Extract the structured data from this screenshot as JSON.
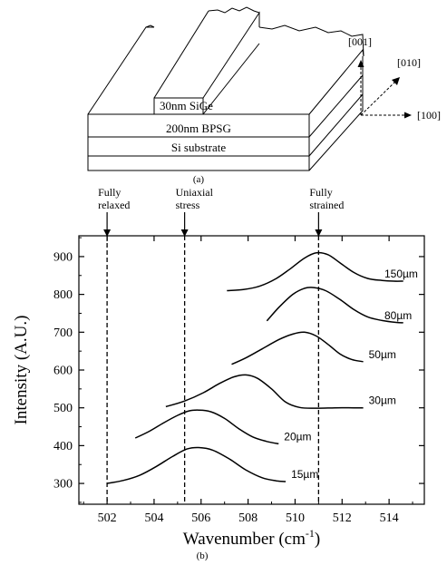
{
  "panel_a": {
    "layers": [
      "30nm SiGe",
      "200nm BPSG",
      "Si substrate"
    ],
    "axes": [
      "[001]",
      "[010]",
      "[100]"
    ],
    "caption": "(a)"
  },
  "panel_b": {
    "caption": "(b)",
    "markers": [
      {
        "label_lines": [
          "Fully",
          "relaxed"
        ],
        "x": 502.0
      },
      {
        "label_lines": [
          "Uniaxial",
          "stress"
        ],
        "x": 505.3
      },
      {
        "label_lines": [
          "Fully",
          "strained"
        ],
        "x": 511.0
      }
    ]
  },
  "chart_data": {
    "type": "line",
    "xlabel": "Wavenumber (cm",
    "xlabel_sup": "-1",
    "xlabel_tail": ")",
    "ylabel": "Intensity (A.U.)",
    "xlim": [
      500.8,
      515.5
    ],
    "ylim": [
      245,
      955
    ],
    "xticks": [
      502,
      504,
      506,
      508,
      510,
      512,
      514
    ],
    "yticks": [
      300,
      400,
      500,
      600,
      700,
      800,
      900
    ],
    "series": [
      {
        "name": "15µm",
        "x": [
          502.0,
          502.7,
          503.4,
          504.1,
          504.8,
          505.4,
          505.9,
          506.5,
          507.2,
          507.9,
          508.6,
          509.2,
          509.6
        ],
        "y": [
          300,
          308,
          322,
          345,
          372,
          391,
          395,
          388,
          365,
          336,
          315,
          307,
          305
        ]
      },
      {
        "name": "20µm",
        "x": [
          503.2,
          503.8,
          504.4,
          505.0,
          505.5,
          505.9,
          506.4,
          507.0,
          507.6,
          508.2,
          508.8,
          509.3
        ],
        "y": [
          420,
          438,
          460,
          480,
          492,
          494,
          490,
          472,
          445,
          423,
          411,
          405
        ]
      },
      {
        "name": "30µm",
        "x": [
          504.5,
          505.3,
          506.1,
          506.8,
          507.4,
          507.9,
          508.4,
          509.0,
          509.6,
          510.2,
          510.9,
          511.7,
          512.5,
          512.9
        ],
        "y": [
          503,
          518,
          540,
          565,
          582,
          587,
          578,
          550,
          515,
          501,
          499,
          500,
          500,
          500
        ]
      },
      {
        "name": "50µm",
        "x": [
          507.3,
          507.9,
          508.6,
          509.3,
          509.9,
          510.4,
          510.9,
          511.4,
          511.9,
          512.4,
          512.9
        ],
        "y": [
          615,
          632,
          656,
          680,
          695,
          700,
          690,
          668,
          643,
          628,
          622
        ]
      },
      {
        "name": "80µm",
        "x": [
          508.8,
          509.3,
          509.9,
          510.4,
          510.8,
          511.3,
          511.9,
          512.5,
          513.1,
          513.7,
          514.3,
          514.6
        ],
        "y": [
          730,
          765,
          800,
          816,
          818,
          810,
          787,
          760,
          740,
          731,
          726,
          725
        ]
      },
      {
        "name": "150µm",
        "x": [
          507.1,
          507.8,
          508.5,
          509.2,
          509.8,
          510.4,
          510.9,
          511.4,
          511.9,
          512.5,
          513.1,
          513.7,
          514.2,
          514.6
        ],
        "y": [
          810,
          813,
          822,
          842,
          868,
          896,
          910,
          905,
          884,
          858,
          842,
          837,
          835,
          835
        ]
      }
    ]
  }
}
